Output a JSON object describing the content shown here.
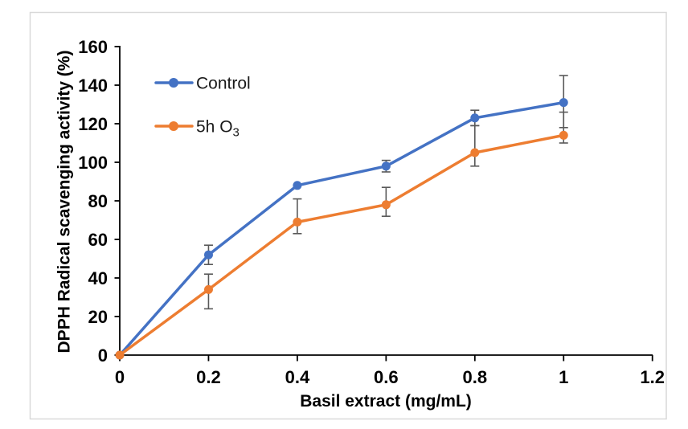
{
  "chart_data": {
    "type": "line",
    "title": "",
    "xlabel": "Basil extract (mg/mL)",
    "ylabel": "DPPH Radical scavenging activity (%)",
    "xlim": [
      0,
      1.2
    ],
    "ylim": [
      0,
      160
    ],
    "grid": false,
    "legend_position": "inside-top-left",
    "x": [
      0,
      0.2,
      0.4,
      0.6,
      0.8,
      1
    ],
    "x_tick_labels": [
      "0",
      "0.2",
      "0.4",
      "0.6",
      "0.8",
      "1",
      "1.2"
    ],
    "x_tick_values": [
      0,
      0.2,
      0.4,
      0.6,
      0.8,
      1,
      1.2
    ],
    "y_tick_labels": [
      "0",
      "20",
      "40",
      "60",
      "80",
      "100",
      "120",
      "140",
      "160"
    ],
    "y_tick_values": [
      0,
      20,
      40,
      60,
      80,
      100,
      120,
      140,
      160
    ],
    "series": [
      {
        "name": "Control",
        "color": "#4472C4",
        "values": [
          0,
          52,
          88,
          98,
          123,
          131
        ],
        "err_minus": [
          0,
          5,
          0,
          3,
          4,
          13
        ],
        "err_plus": [
          0,
          5,
          0,
          3,
          4,
          14
        ]
      },
      {
        "name": "5h O₃",
        "color": "#ED7D31",
        "values": [
          0,
          34,
          69,
          78,
          105,
          114
        ],
        "err_minus": [
          0,
          10,
          6,
          6,
          7,
          4
        ],
        "err_plus": [
          0,
          8,
          12,
          9,
          14,
          12
        ]
      }
    ],
    "error_bar_color": "#595959",
    "axis_color": "#000000",
    "frame_border_color": "#D9D9D9",
    "background": "#FFFFFF"
  },
  "legend": {
    "items": [
      {
        "label": "Control",
        "sub": ""
      },
      {
        "label": "5h O",
        "sub": "3"
      }
    ]
  }
}
